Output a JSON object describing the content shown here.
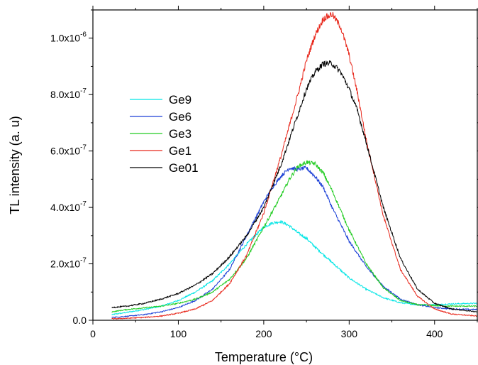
{
  "chart_data": {
    "type": "line",
    "xlabel": "Temperature (°C)",
    "ylabel": "TL intensity (a. u)",
    "xlim": [
      0,
      450
    ],
    "ylim": [
      0,
      1.1e-06
    ],
    "x_ticks": [
      {
        "value": 0,
        "label": "0"
      },
      {
        "value": 100,
        "label": "100"
      },
      {
        "value": 200,
        "label": "200"
      },
      {
        "value": 300,
        "label": "300"
      },
      {
        "value": 400,
        "label": "400"
      }
    ],
    "y_ticks": [
      {
        "value": 0,
        "label": "0.0",
        "sup": ""
      },
      {
        "value": 2e-07,
        "label": "2.0x10",
        "sup": "-7"
      },
      {
        "value": 4e-07,
        "label": "4.0x10",
        "sup": "-7"
      },
      {
        "value": 6e-07,
        "label": "6.0x10",
        "sup": "-7"
      },
      {
        "value": 8e-07,
        "label": "8.0x10",
        "sup": "-7"
      },
      {
        "value": 1e-06,
        "label": "1.0x10",
        "sup": "-6"
      }
    ],
    "grid": false,
    "legend_position": "left",
    "series": [
      {
        "name": "Ge9",
        "color": "#00e5e5",
        "x": [
          22,
          40,
          60,
          80,
          100,
          120,
          140,
          160,
          180,
          200,
          210,
          220,
          230,
          240,
          250,
          260,
          280,
          300,
          320,
          340,
          360,
          380,
          400,
          420,
          450
        ],
        "y": [
          2e-08,
          2.8e-08,
          3.8e-08,
          5e-08,
          7e-08,
          1e-07,
          1.4e-07,
          2e-07,
          2.7e-07,
          3.3e-07,
          3.45e-07,
          3.5e-07,
          3.35e-07,
          3.1e-07,
          2.9e-07,
          2.6e-07,
          2.05e-07,
          1.5e-07,
          1.1e-07,
          8e-08,
          6.2e-08,
          5.5e-08,
          5.5e-08,
          5.8e-08,
          6e-08
        ]
      },
      {
        "name": "Ge6",
        "color": "#1a3fd6",
        "x": [
          22,
          40,
          60,
          80,
          100,
          120,
          140,
          160,
          180,
          200,
          210,
          220,
          230,
          240,
          250,
          260,
          270,
          280,
          300,
          320,
          340,
          360,
          380,
          400,
          420,
          450
        ],
        "y": [
          1e-08,
          1.4e-08,
          2e-08,
          3e-08,
          4.5e-08,
          7e-08,
          1.1e-07,
          1.8e-07,
          3e-07,
          4.2e-07,
          4.7e-07,
          5.1e-07,
          5.4e-07,
          5.35e-07,
          5.4e-07,
          5.1e-07,
          4.7e-07,
          4e-07,
          2.8e-07,
          1.9e-07,
          1.2e-07,
          7.5e-08,
          5.5e-08,
          4.5e-08,
          4e-08,
          3.8e-08
        ]
      },
      {
        "name": "Ge3",
        "color": "#22cc22",
        "x": [
          22,
          40,
          60,
          80,
          100,
          120,
          140,
          160,
          180,
          200,
          220,
          230,
          240,
          250,
          260,
          270,
          280,
          300,
          320,
          340,
          360,
          380,
          400,
          420,
          450
        ],
        "y": [
          3e-08,
          3.8e-08,
          4.4e-08,
          5e-08,
          6e-08,
          7.5e-08,
          1e-07,
          1.45e-07,
          2.2e-07,
          3.3e-07,
          4.4e-07,
          5e-07,
          5.45e-07,
          5.6e-07,
          5.55e-07,
          5.2e-07,
          4.6e-07,
          3.2e-07,
          2e-07,
          1.15e-07,
          7e-08,
          5.5e-08,
          5.2e-08,
          5e-08,
          5e-08
        ]
      },
      {
        "name": "Ge1",
        "color": "#e8271b",
        "x": [
          22,
          40,
          60,
          80,
          100,
          120,
          140,
          160,
          180,
          200,
          220,
          240,
          250,
          260,
          270,
          280,
          290,
          300,
          310,
          320,
          340,
          360,
          380,
          400,
          420,
          450
        ],
        "y": [
          5e-09,
          7e-09,
          1e-08,
          1.5e-08,
          2.5e-08,
          4e-08,
          7e-08,
          1.3e-07,
          2.3e-07,
          3.8e-07,
          5.8e-07,
          8e-07,
          9.2e-07,
          1.01e-06,
          1.07e-06,
          1.085e-06,
          1.04e-06,
          9.4e-07,
          8e-07,
          6.4e-07,
          3.7e-07,
          1.8e-07,
          8.5e-08,
          4e-08,
          2.2e-08,
          1.5e-08
        ]
      },
      {
        "name": "Ge01",
        "color": "#000000",
        "x": [
          22,
          40,
          60,
          80,
          100,
          120,
          140,
          160,
          180,
          200,
          220,
          240,
          250,
          260,
          270,
          280,
          290,
          300,
          310,
          320,
          340,
          360,
          380,
          400,
          420,
          450
        ],
        "y": [
          4.5e-08,
          5e-08,
          6e-08,
          7.5e-08,
          9.5e-08,
          1.25e-07,
          1.65e-07,
          2.25e-07,
          3e-07,
          4e-07,
          5.5e-07,
          7.3e-07,
          8.2e-07,
          8.8e-07,
          9.1e-07,
          9.1e-07,
          8.8e-07,
          8.2e-07,
          7.4e-07,
          6.3e-07,
          4e-07,
          2.2e-07,
          1.1e-07,
          6e-08,
          4e-08,
          3e-08
        ]
      }
    ]
  }
}
